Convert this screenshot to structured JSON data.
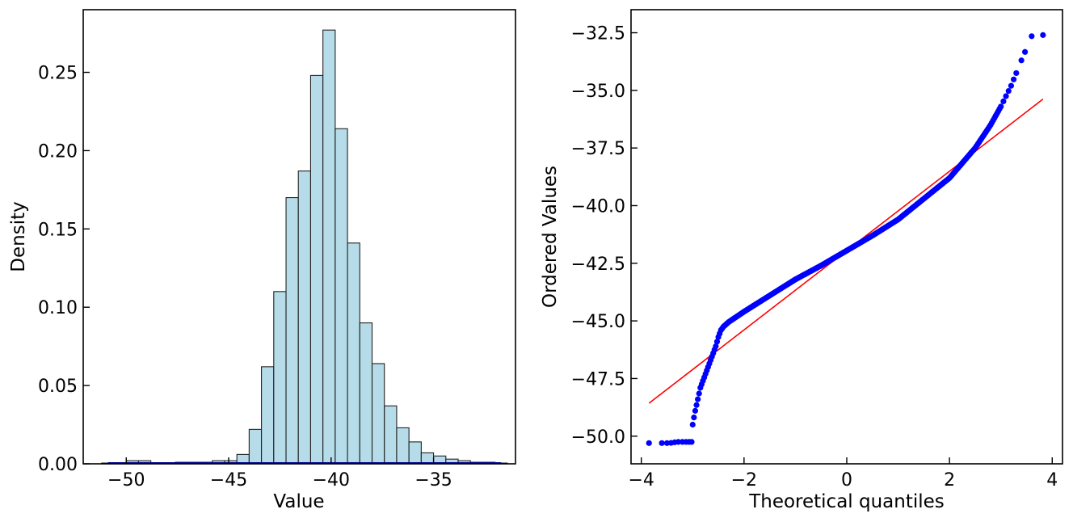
{
  "chart_data": [
    {
      "type": "bar",
      "subtype": "histogram",
      "title": "",
      "xlabel": "Value",
      "ylabel": "Density",
      "xlim": [
        -52.1,
        -31.0
      ],
      "ylim": [
        0,
        0.29
      ],
      "xticks": [
        -50,
        -45,
        -40,
        -35
      ],
      "xtick_labels": [
        "−50",
        "−45",
        "−40",
        "−35"
      ],
      "yticks": [
        0.0,
        0.05,
        0.1,
        0.15,
        0.2,
        0.25
      ],
      "ytick_labels": [
        "0.00",
        "0.05",
        "0.10",
        "0.15",
        "0.20",
        "0.25"
      ],
      "bar_color": "#add8e6",
      "edge_color": "#222222",
      "kde_color": "#00008b",
      "bin_start": -51.2,
      "bin_width": 0.6,
      "values": [
        0.0005,
        0.0005,
        0.002,
        0.002,
        0.0005,
        0.0005,
        0.001,
        0.001,
        0.001,
        0.002,
        0.002,
        0.006,
        0.022,
        0.062,
        0.11,
        0.17,
        0.187,
        0.248,
        0.277,
        0.214,
        0.141,
        0.09,
        0.064,
        0.037,
        0.023,
        0.014,
        0.007,
        0.005,
        0.003,
        0.002,
        0.001,
        0.001,
        0.0005
      ],
      "grid": false,
      "legend": "none"
    },
    {
      "type": "scatter",
      "subtype": "probability-plot",
      "title": "",
      "xlabel": "Theoretical quantiles",
      "ylabel": "Ordered Values",
      "xlim": [
        -4.2,
        4.2
      ],
      "ylim": [
        -51.2,
        -31.5
      ],
      "xticks": [
        -4,
        -2,
        0,
        2,
        4
      ],
      "xtick_labels": [
        "−4",
        "−2",
        "0",
        "2",
        "4"
      ],
      "yticks": [
        -50.0,
        -47.5,
        -45.0,
        -42.5,
        -40.0,
        -37.5,
        -35.0,
        -32.5
      ],
      "ytick_labels": [
        "−50.0",
        "−47.5",
        "−45.0",
        "−42.5",
        "−40.0",
        "−37.5",
        "−35.0",
        "−32.5"
      ],
      "marker_color": "#0000ff",
      "fit_line": {
        "slope": 1.72,
        "intercept": -41.95,
        "x_range": [
          -3.85,
          3.82
        ],
        "color": "#ff0000"
      },
      "control_points": {
        "x": [
          -3.85,
          -3.6,
          -3.45,
          -3.3,
          -3.15,
          -3.02,
          -3.0,
          -2.96,
          -2.92,
          -2.88,
          -2.85,
          -2.8,
          -2.75,
          -2.7,
          -2.65,
          -2.6,
          -2.55,
          -2.5,
          -2.45,
          -2.4,
          -2.3,
          -2.2,
          -2.0,
          -1.5,
          -1.0,
          -0.5,
          0.0,
          0.5,
          1.0,
          1.5,
          2.0,
          2.5,
          2.8,
          3.0,
          3.2,
          3.4,
          3.6,
          3.82
        ],
        "y": [
          -50.3,
          -50.3,
          -50.3,
          -50.25,
          -50.25,
          -50.25,
          -49.5,
          -49.0,
          -48.6,
          -48.2,
          -47.9,
          -47.6,
          -47.3,
          -47.0,
          -46.7,
          -46.4,
          -46.1,
          -45.7,
          -45.4,
          -45.25,
          -45.05,
          -44.9,
          -44.6,
          -43.9,
          -43.2,
          -42.6,
          -41.95,
          -41.3,
          -40.6,
          -39.7,
          -38.8,
          -37.5,
          -36.5,
          -35.7,
          -34.8,
          -33.7,
          -32.65,
          -32.6
        ]
      },
      "grid": false,
      "legend": "none"
    }
  ]
}
